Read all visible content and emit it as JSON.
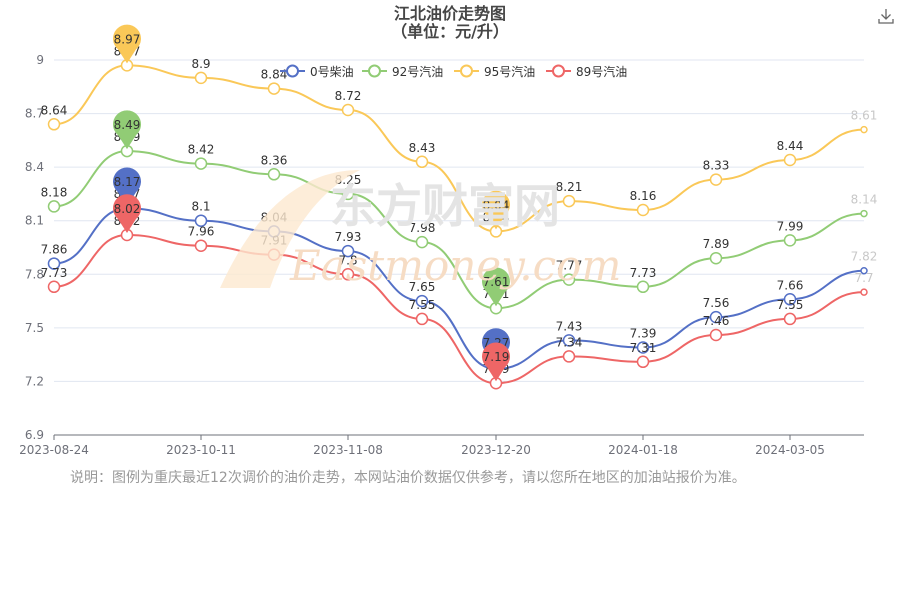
{
  "title": "江北油价走势图",
  "subtitle": "（单位：元/升）",
  "note": "说明：图例为重庆最近12次调价的油价走势，本网站油价数据仅供参考，请以您所在地区的加油站报价为准。",
  "watermark": {
    "cn": "东方财富网",
    "en": "Eastmoney.com"
  },
  "toolbox": {
    "download_icon": "download-icon"
  },
  "chart_data": {
    "type": "line",
    "smooth": true,
    "x": [
      "2023-08-24",
      "2023-09-14",
      "2023-10-11",
      "2023-10-25",
      "2023-11-08",
      "2023-11-22",
      "2023-12-20",
      "2024-01-03",
      "2024-01-18",
      "2024-02-01",
      "2024-03-05",
      "2024-03-19"
    ],
    "x_tick_labels": [
      "2023-08-24",
      "2023-10-11",
      "2023-11-08",
      "2023-12-20",
      "2024-01-18",
      "2024-03-05"
    ],
    "ylim": [
      6.9,
      9.0
    ],
    "y_ticks": [
      6.9,
      7.2,
      7.5,
      7.8,
      8.1,
      8.4,
      8.7,
      9
    ],
    "legend": "top",
    "series": [
      {
        "name": "0号柴油",
        "color": "#5470c6",
        "values": [
          7.86,
          8.17,
          8.1,
          8.04,
          7.93,
          7.65,
          7.27,
          7.43,
          7.39,
          7.56,
          7.66,
          7.82
        ],
        "max_index": 1,
        "min_index": 6
      },
      {
        "name": "92号汽油",
        "color": "#91cc75",
        "values": [
          8.18,
          8.49,
          8.42,
          8.36,
          8.25,
          7.98,
          7.61,
          7.77,
          7.73,
          7.89,
          7.99,
          8.14
        ],
        "max_index": 1,
        "min_index": 6
      },
      {
        "name": "95号汽油",
        "color": "#fac858",
        "values": [
          8.64,
          8.97,
          8.9,
          8.84,
          8.72,
          8.43,
          8.04,
          8.21,
          8.16,
          8.33,
          8.44,
          8.61
        ],
        "max_index": 1,
        "min_index": 6
      },
      {
        "name": "89号汽油",
        "color": "#ee6666",
        "values": [
          7.73,
          8.02,
          7.96,
          7.91,
          7.8,
          7.55,
          7.19,
          7.34,
          7.31,
          7.46,
          7.55,
          7.7
        ],
        "max_index": 1,
        "min_index": 6
      }
    ]
  }
}
